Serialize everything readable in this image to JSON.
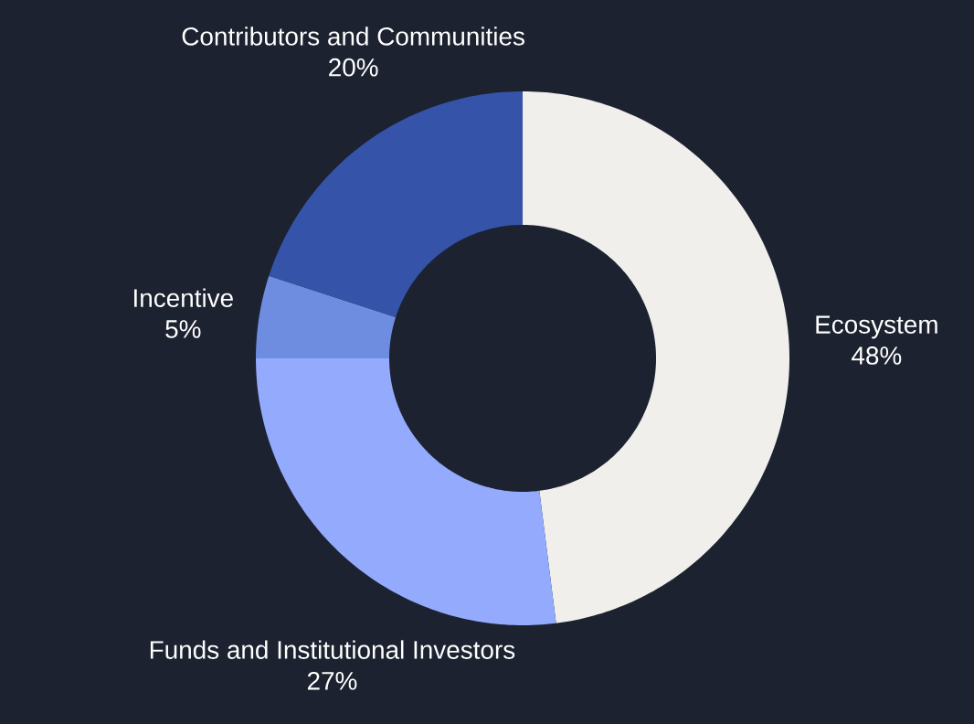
{
  "chart_data": {
    "type": "donut",
    "categories": [
      "Ecosystem",
      "Funds and Institutional Investors",
      "Incentive",
      "Contributors and Communities"
    ],
    "values": [
      48,
      27,
      5,
      20
    ],
    "value_labels": [
      "48%",
      "27%",
      "5%",
      "20%"
    ],
    "colors": [
      "#f0efec",
      "#93aafd",
      "#6f8de0",
      "#3553a8"
    ]
  }
}
